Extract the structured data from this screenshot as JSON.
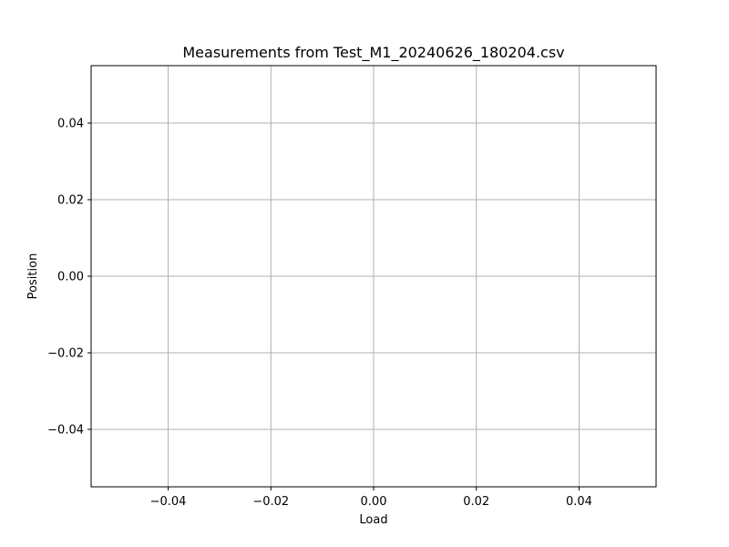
{
  "chart_data": {
    "type": "line",
    "title": "Measurements from Test_M1_20240626_180204.csv",
    "xlabel": "Load",
    "ylabel": "Position",
    "xlim": [
      -0.055,
      0.055
    ],
    "ylim": [
      -0.055,
      0.055
    ],
    "x_ticks": [
      -0.04,
      -0.02,
      0.0,
      0.02,
      0.04
    ],
    "x_tick_labels": [
      "−0.04",
      "−0.02",
      "0.00",
      "0.02",
      "0.04"
    ],
    "y_ticks": [
      -0.04,
      -0.02,
      0.0,
      0.02,
      0.04
    ],
    "y_tick_labels": [
      "−0.04",
      "−0.02",
      "0.00",
      "0.02",
      "0.04"
    ],
    "grid": true,
    "series": [
      {
        "x": [],
        "y": []
      }
    ],
    "colors": {
      "grid": "#b0b0b0",
      "frame": "#000000",
      "background": "#ffffff"
    }
  }
}
